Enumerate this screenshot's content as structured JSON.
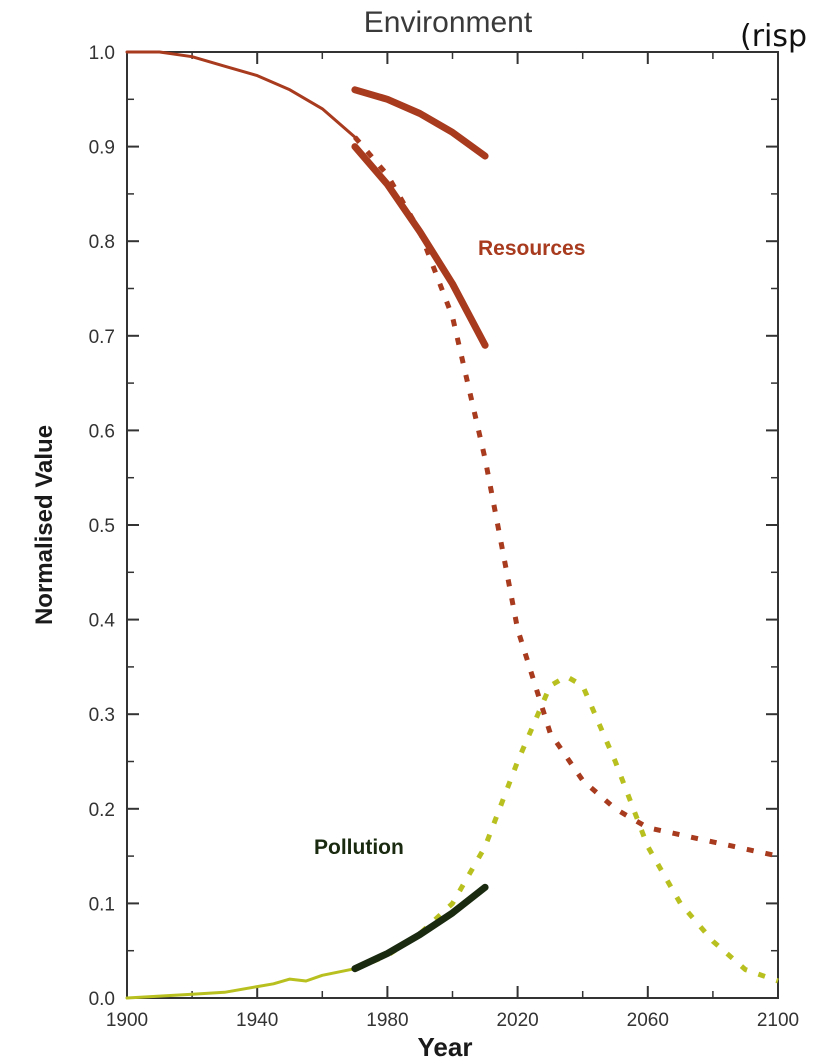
{
  "chart_data": {
    "type": "line",
    "title": "Environment",
    "corner_text": "(risp",
    "xlabel": "Year",
    "ylabel": "Normalised Value",
    "xlim": [
      1900,
      2100
    ],
    "ylim": [
      0,
      1.0
    ],
    "xticks": [
      "1900",
      "1940",
      "1980",
      "2020",
      "2060",
      "2100"
    ],
    "yticks": [
      "0.0",
      "0.1",
      "0.2",
      "0.3",
      "0.4",
      "0.5",
      "0.6",
      "0.7",
      "0.8",
      "0.9",
      "1.0"
    ],
    "grid": false,
    "colors": {
      "resources": "#a83a1e",
      "pollution_model": "#b8c020",
      "pollution_observed": "#1a2a10",
      "axis": "#333333"
    },
    "series_labels": {
      "resources": "Resources",
      "pollution": "Pollution"
    },
    "series": [
      {
        "key": "resources-model-solid",
        "style": "solid",
        "color_key": "resources",
        "weight": "thin",
        "points": [
          [
            1900,
            1.0
          ],
          [
            1910,
            1.0
          ],
          [
            1920,
            0.995
          ],
          [
            1930,
            0.985
          ],
          [
            1940,
            0.975
          ],
          [
            1950,
            0.96
          ],
          [
            1960,
            0.94
          ],
          [
            1970,
            0.91
          ]
        ]
      },
      {
        "key": "resources-model-projection",
        "style": "dotted",
        "color_key": "resources",
        "weight": "thin",
        "points": [
          [
            1970,
            0.91
          ],
          [
            1980,
            0.87
          ],
          [
            1990,
            0.81
          ],
          [
            2000,
            0.72
          ],
          [
            2010,
            0.57
          ],
          [
            2020,
            0.39
          ],
          [
            2030,
            0.28
          ],
          [
            2040,
            0.23
          ],
          [
            2050,
            0.2
          ],
          [
            2060,
            0.18
          ],
          [
            2080,
            0.165
          ],
          [
            2100,
            0.15
          ]
        ]
      },
      {
        "key": "resources-observed-upper",
        "style": "solid",
        "color_key": "resources",
        "weight": "thick",
        "points": [
          [
            1970,
            0.96
          ],
          [
            1980,
            0.95
          ],
          [
            1990,
            0.935
          ],
          [
            2000,
            0.915
          ],
          [
            2010,
            0.89
          ]
        ]
      },
      {
        "key": "resources-observed-lower",
        "style": "solid",
        "color_key": "resources",
        "weight": "thick",
        "points": [
          [
            1970,
            0.9
          ],
          [
            1980,
            0.86
          ],
          [
            1990,
            0.81
          ],
          [
            2000,
            0.755
          ],
          [
            2010,
            0.69
          ]
        ]
      },
      {
        "key": "pollution-model-solid",
        "style": "solid",
        "color_key": "pollution_model",
        "weight": "thin",
        "points": [
          [
            1900,
            0.0
          ],
          [
            1910,
            0.002
          ],
          [
            1920,
            0.004
          ],
          [
            1930,
            0.006
          ],
          [
            1940,
            0.012
          ],
          [
            1945,
            0.015
          ],
          [
            1950,
            0.02
          ],
          [
            1955,
            0.018
          ],
          [
            1960,
            0.024
          ],
          [
            1970,
            0.031
          ]
        ]
      },
      {
        "key": "pollution-model-projection",
        "style": "dotted",
        "color_key": "pollution_model",
        "weight": "thin",
        "points": [
          [
            1970,
            0.031
          ],
          [
            1980,
            0.045
          ],
          [
            1990,
            0.068
          ],
          [
            2000,
            0.1
          ],
          [
            2010,
            0.16
          ],
          [
            2020,
            0.25
          ],
          [
            2030,
            0.33
          ],
          [
            2035,
            0.34
          ],
          [
            2040,
            0.33
          ],
          [
            2050,
            0.25
          ],
          [
            2060,
            0.16
          ],
          [
            2070,
            0.1
          ],
          [
            2080,
            0.06
          ],
          [
            2090,
            0.03
          ],
          [
            2100,
            0.018
          ]
        ]
      },
      {
        "key": "pollution-observed",
        "style": "solid",
        "color_key": "pollution_observed",
        "weight": "thick",
        "points": [
          [
            1970,
            0.031
          ],
          [
            1980,
            0.047
          ],
          [
            1990,
            0.067
          ],
          [
            2000,
            0.09
          ],
          [
            2010,
            0.117
          ]
        ]
      }
    ]
  }
}
